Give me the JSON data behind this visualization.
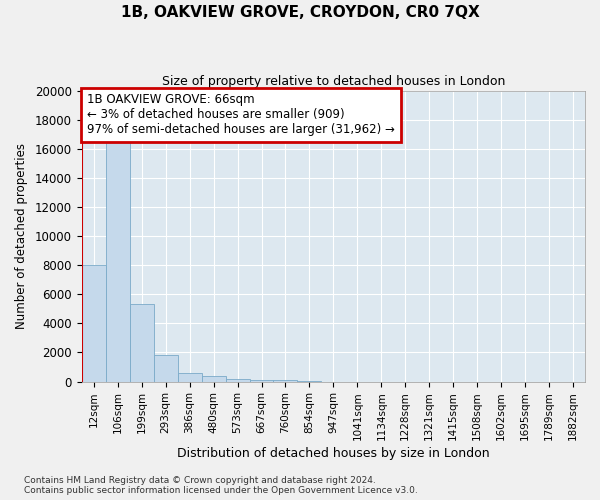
{
  "title": "1B, OAKVIEW GROVE, CROYDON, CR0 7QX",
  "subtitle": "Size of property relative to detached houses in London",
  "xlabel": "Distribution of detached houses by size in London",
  "ylabel": "Number of detached properties",
  "bar_color": "#c5d9eb",
  "bar_edge_color": "#7aaac8",
  "background_color": "#dde8f0",
  "fig_background": "#f0f0f0",
  "categories": [
    "12sqm",
    "106sqm",
    "199sqm",
    "293sqm",
    "386sqm",
    "480sqm",
    "573sqm",
    "667sqm",
    "760sqm",
    "854sqm",
    "947sqm",
    "1041sqm",
    "1134sqm",
    "1228sqm",
    "1321sqm",
    "1415sqm",
    "1508sqm",
    "1602sqm",
    "1695sqm",
    "1789sqm",
    "1882sqm"
  ],
  "values": [
    8000,
    16500,
    5300,
    1800,
    600,
    350,
    200,
    130,
    100,
    50,
    0,
    0,
    0,
    0,
    0,
    0,
    0,
    0,
    0,
    0,
    0
  ],
  "ylim": [
    0,
    20000
  ],
  "yticks": [
    0,
    2000,
    4000,
    6000,
    8000,
    10000,
    12000,
    14000,
    16000,
    18000,
    20000
  ],
  "vline_x": -0.5,
  "vline_color": "#cc0000",
  "annotation_text": "1B OAKVIEW GROVE: 66sqm\n← 3% of detached houses are smaller (909)\n97% of semi-detached houses are larger (31,962) →",
  "annotation_box_facecolor": "#ffffff",
  "annotation_box_edgecolor": "#cc0000",
  "footer": "Contains HM Land Registry data © Crown copyright and database right 2024.\nContains public sector information licensed under the Open Government Licence v3.0."
}
